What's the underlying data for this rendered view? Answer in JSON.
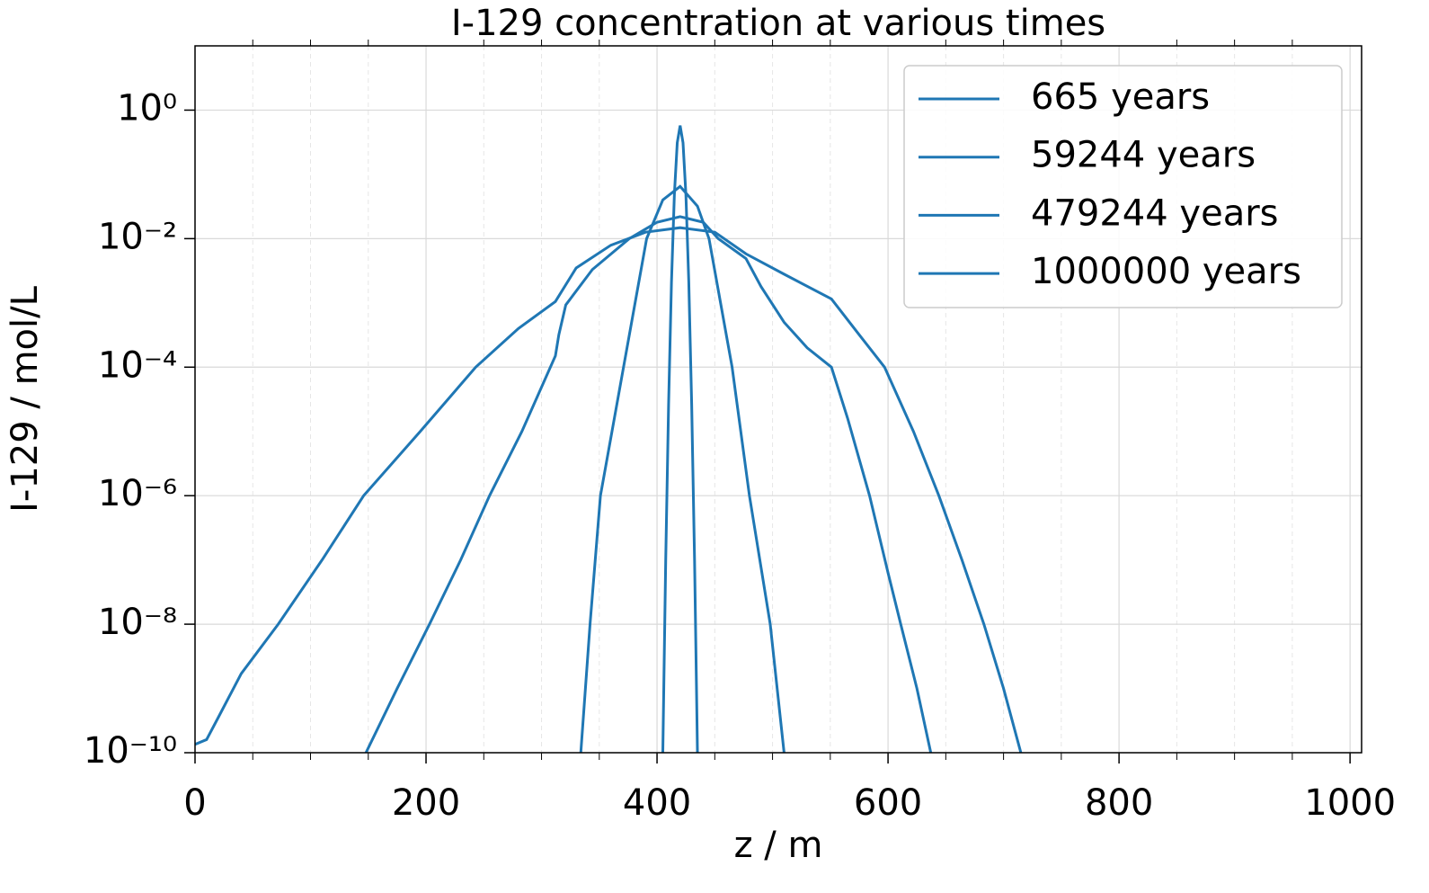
{
  "chart_data": {
    "type": "line",
    "title": "I-129 concentration at various times",
    "xlabel": "z / m",
    "ylabel": "I-129 / mol/L",
    "yscale": "log",
    "grid": true,
    "legend": "upper right",
    "xlim": [
      0,
      1010
    ],
    "ylim": [
      1e-10,
      10
    ],
    "xticks": [
      0,
      200,
      400,
      600,
      800,
      1000
    ],
    "xminorticks": [
      50,
      100,
      150,
      250,
      300,
      350,
      450,
      500,
      550,
      650,
      700,
      750,
      850,
      900,
      950
    ],
    "yticks": [
      {
        "value": 1e-10,
        "label": "10⁻¹⁰"
      },
      {
        "value": 1e-08,
        "label": "10⁻⁸"
      },
      {
        "value": 1e-06,
        "label": "10⁻⁶"
      },
      {
        "value": 0.0001,
        "label": "10⁻⁴"
      },
      {
        "value": 0.01,
        "label": "10⁻²"
      },
      {
        "value": 1,
        "label": "10⁰"
      }
    ],
    "series": [
      {
        "name": "665 years",
        "color": "#1f77b4",
        "x": [
          405,
          407.5,
          410,
          412.5,
          415,
          417.5,
          420,
          422.5,
          425,
          427.5,
          430,
          432.5,
          435
        ],
        "values": [
          1e-10,
          9.5e-08,
          2.6e-05,
          0.0021,
          0.048,
          0.31,
          0.575,
          0.31,
          0.048,
          0.0021,
          2.6e-05,
          9.5e-08,
          1e-10
        ]
      },
      {
        "name": "59244 years",
        "color": "#1f77b4",
        "x": [
          334,
          342,
          351,
          361,
          371,
          391,
          405,
          420,
          435,
          445,
          455,
          465,
          480,
          498,
          510
        ],
        "values": [
          1e-10,
          1e-08,
          1e-06,
          1e-05,
          0.0001,
          0.01,
          0.04,
          0.065,
          0.032,
          0.01,
          0.001,
          0.0001,
          1e-06,
          1e-08,
          1e-10
        ]
      },
      {
        "name": "479244 years",
        "color": "#1f77b4",
        "x": [
          148,
          175,
          203,
          230,
          255,
          283,
          312,
          315,
          321,
          344,
          376,
          400,
          420,
          440,
          453,
          477,
          490,
          510,
          530,
          551,
          565,
          584,
          600,
          611,
          625,
          637
        ],
        "values": [
          1e-10,
          1e-09,
          1e-08,
          1e-07,
          1e-06,
          1e-05,
          0.00015,
          0.00032,
          0.00093,
          0.0033,
          0.01,
          0.018,
          0.022,
          0.018,
          0.01,
          0.0049,
          0.0018,
          0.0005,
          0.0002,
          0.0001,
          1.6e-05,
          1e-06,
          6.3e-08,
          1e-08,
          1e-09,
          1e-10
        ]
      },
      {
        "name": "1000000 years",
        "color": "#1f77b4",
        "x": [
          0,
          10,
          20,
          40,
          72,
          110,
          146,
          195,
          243,
          280,
          312,
          330,
          360,
          390,
          420,
          450,
          477,
          510,
          551,
          575,
          597,
          622,
          644,
          664,
          683,
          700,
          715
        ],
        "values": [
          1.35e-10,
          1.6e-10,
          3.5e-10,
          1.7e-09,
          1e-08,
          1e-07,
          1e-06,
          1e-05,
          0.0001,
          0.0004,
          0.00105,
          0.0035,
          0.0079,
          0.0126,
          0.0148,
          0.0126,
          0.0058,
          0.0028,
          0.00115,
          0.00032,
          0.0001,
          1e-05,
          1e-06,
          1e-07,
          1e-08,
          1e-09,
          1e-10
        ]
      }
    ]
  }
}
